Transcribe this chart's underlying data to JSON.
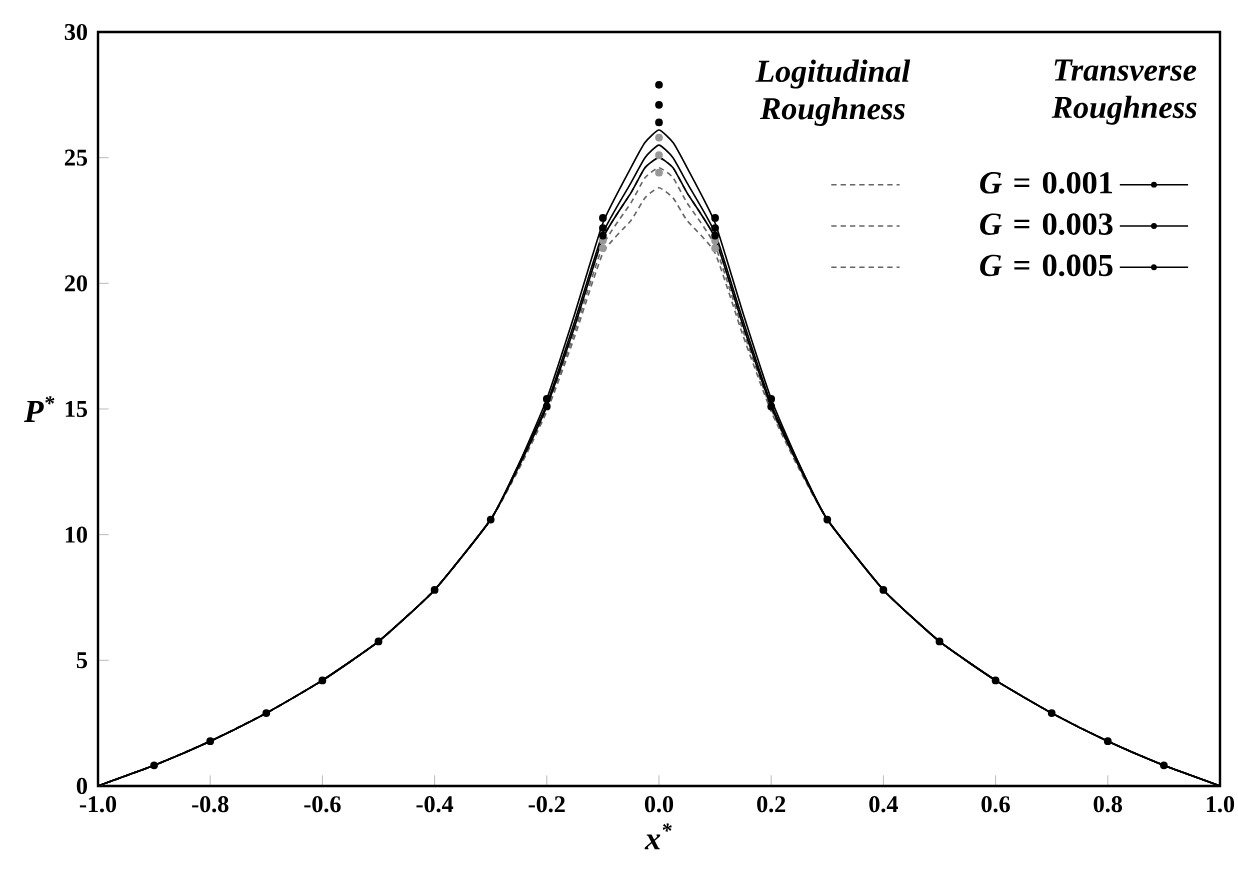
{
  "chart_data": {
    "type": "line",
    "xlabel": "x$^{*}$",
    "ylabel": "P$^{*}$",
    "x": [
      -1.0,
      -0.9,
      -0.8,
      -0.7,
      -0.6,
      -0.5,
      -0.4,
      -0.3,
      -0.25,
      -0.2,
      -0.15,
      -0.1,
      -0.05,
      -0.025,
      0.0,
      0.025,
      0.05,
      0.1,
      0.15,
      0.2,
      0.25,
      0.3,
      0.4,
      0.5,
      0.6,
      0.7,
      0.8,
      0.9,
      1.0
    ],
    "series": [
      {
        "color": "#666666",
        "line_style": "dashed",
        "marker": "none",
        "values": [
          0,
          0.82,
          1.78,
          2.9,
          4.2,
          5.75,
          7.8,
          10.6,
          12.7,
          15.1,
          18.3,
          21.8,
          23.6,
          24.6,
          25.0,
          24.6,
          23.6,
          21.8,
          18.3,
          15.1,
          12.7,
          10.6,
          7.8,
          5.75,
          4.2,
          2.9,
          1.78,
          0.82,
          0
        ]
      },
      {
        "color": "#666666",
        "line_style": "dashed",
        "marker": "none",
        "values": [
          0,
          0.82,
          1.78,
          2.9,
          4.2,
          5.75,
          7.8,
          10.6,
          12.7,
          15.0,
          18.1,
          21.5,
          23.2,
          24.2,
          24.6,
          24.2,
          23.2,
          21.5,
          18.1,
          15.0,
          12.7,
          10.6,
          7.8,
          5.75,
          4.2,
          2.9,
          1.78,
          0.82,
          0
        ]
      },
      {
        "color": "#666666",
        "line_style": "dashed",
        "marker": "none",
        "values": [
          0,
          0.82,
          1.78,
          2.9,
          4.2,
          5.75,
          7.8,
          10.6,
          12.6,
          14.9,
          17.9,
          21.2,
          22.5,
          23.4,
          23.8,
          23.4,
          22.5,
          21.2,
          17.9,
          14.9,
          12.6,
          10.6,
          7.8,
          5.75,
          4.2,
          2.9,
          1.78,
          0.82,
          0
        ]
      },
      {
        "name": "*G* = 0.001",
        "color": "#000000",
        "line_style": "solid",
        "marker": "none",
        "values": [
          0,
          0.82,
          1.78,
          2.9,
          4.2,
          5.75,
          7.8,
          10.6,
          12.8,
          15.4,
          18.8,
          22.4,
          24.6,
          25.6,
          26.1,
          25.6,
          24.6,
          22.4,
          18.8,
          15.4,
          12.8,
          10.6,
          7.8,
          5.75,
          4.2,
          2.9,
          1.78,
          0.82,
          0
        ]
      },
      {
        "name": "*G* = 0.003",
        "color": "#000000",
        "line_style": "solid",
        "marker": "none",
        "values": [
          0,
          0.82,
          1.78,
          2.9,
          4.2,
          5.75,
          7.8,
          10.6,
          12.8,
          15.2,
          18.5,
          22.0,
          24.0,
          25.0,
          25.5,
          25.0,
          24.0,
          22.0,
          18.5,
          15.2,
          12.8,
          10.6,
          7.8,
          5.75,
          4.2,
          2.9,
          1.78,
          0.82,
          0
        ]
      },
      {
        "name": "*G* = 0.005",
        "color": "#000000",
        "line_style": "solid",
        "marker": "none",
        "values": [
          0,
          0.82,
          1.78,
          2.9,
          4.2,
          5.75,
          7.8,
          10.6,
          12.7,
          15.1,
          18.3,
          21.8,
          23.6,
          24.6,
          25.0,
          24.6,
          23.6,
          21.8,
          18.3,
          15.1,
          12.7,
          10.6,
          7.8,
          5.75,
          4.2,
          2.9,
          1.78,
          0.82,
          0
        ]
      },
      {
        "type": "scatter",
        "color": "#999999",
        "marker": "circle",
        "x": [
          0.0
        ],
        "values": [
          25.8
        ]
      },
      {
        "type": "scatter",
        "color": "#999999",
        "marker": "circle",
        "x": [
          -0.1,
          0.0,
          0.1
        ],
        "values": [
          21.7,
          25.1,
          21.7
        ]
      },
      {
        "type": "scatter",
        "color": "#999999",
        "marker": "circle",
        "x": [
          -0.1,
          0.0,
          0.1
        ],
        "values": [
          21.4,
          24.4,
          21.4
        ]
      },
      {
        "type": "scatter",
        "color": "#000000",
        "marker": "circle",
        "x": [
          -0.9,
          -0.8,
          -0.7,
          -0.6,
          -0.5,
          -0.4,
          -0.3,
          -0.2,
          -0.1,
          0.0,
          0.1,
          0.2,
          0.3,
          0.4,
          0.5,
          0.6,
          0.7,
          0.8,
          0.9
        ],
        "values": [
          0.82,
          1.78,
          2.9,
          4.2,
          5.75,
          7.8,
          10.6,
          15.4,
          22.6,
          27.9,
          22.6,
          15.4,
          10.6,
          7.8,
          5.75,
          4.2,
          2.9,
          1.78,
          0.82
        ]
      },
      {
        "type": "scatter",
        "color": "#000000",
        "marker": "circle",
        "x": [
          -0.1,
          0.0,
          0.1
        ],
        "values": [
          22.2,
          27.1,
          22.2
        ]
      },
      {
        "type": "scatter",
        "color": "#000000",
        "marker": "circle",
        "x": [
          -0.2,
          -0.1,
          0.0,
          0.1,
          0.2
        ],
        "values": [
          15.1,
          21.9,
          26.4,
          21.9,
          15.1
        ]
      }
    ],
    "annotations": [
      "Logitudinal Roughness",
      "Transverse Roughness"
    ],
    "xlim": [
      -1.0,
      1.0
    ],
    "ylim": [
      0,
      30
    ],
    "xticks": [
      {
        "value": -1.0,
        "label": "-1.0"
      },
      {
        "value": -0.8,
        "label": "-0.8"
      },
      {
        "value": -0.6,
        "label": "-0.6"
      },
      {
        "value": -0.4,
        "label": "-0.4"
      },
      {
        "value": -0.2,
        "label": "-0.2"
      },
      {
        "value": 0.0,
        "label": "0.0"
      },
      {
        "value": 0.2,
        "label": "0.2"
      },
      {
        "value": 0.4,
        "label": "0.4"
      },
      {
        "value": 0.6,
        "label": "0.6"
      },
      {
        "value": 0.8,
        "label": "0.8"
      },
      {
        "value": 1.0,
        "label": "1.0"
      }
    ],
    "yticks": [
      0,
      5,
      10,
      15,
      20,
      25,
      30
    ],
    "grid": false,
    "legend": "top right"
  }
}
